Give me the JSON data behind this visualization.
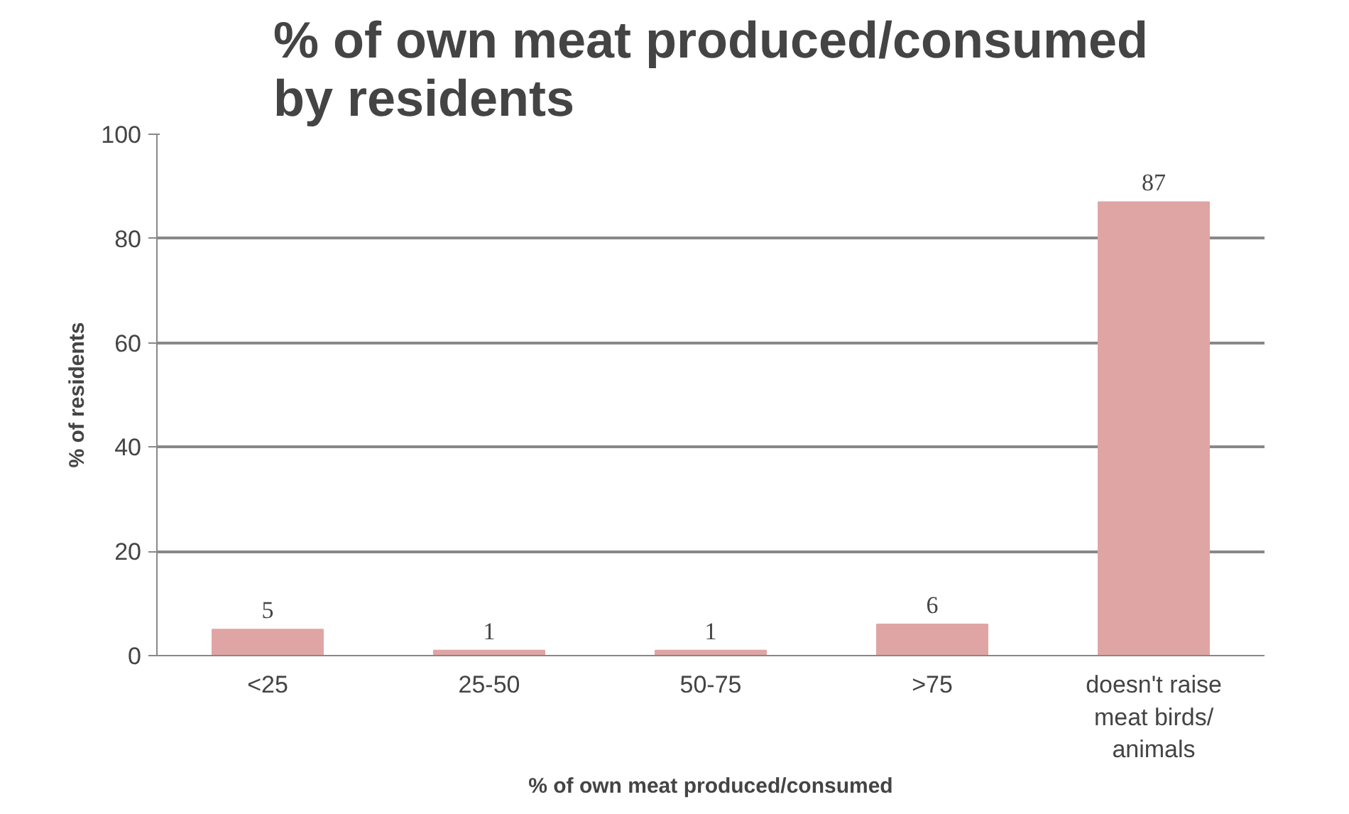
{
  "chart_data": {
    "type": "bar",
    "title": "% of own meat produced/consumed\nby residents",
    "xlabel": "% of own meat produced/consumed",
    "ylabel": "% of residents",
    "categories": [
      "<25",
      "25-50",
      "50-75",
      ">75",
      "doesn't raise\nmeat birds/\nanimals"
    ],
    "values": [
      5,
      1,
      1,
      6,
      87
    ],
    "color": "#dfa5a4",
    "ylim": [
      0,
      100
    ],
    "yticks": [
      0,
      20,
      40,
      60,
      80,
      100
    ],
    "grid": "y",
    "data_labels": true
  }
}
